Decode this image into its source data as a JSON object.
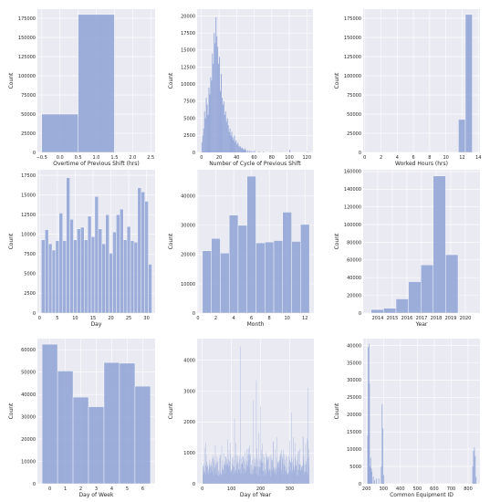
{
  "chart_data": [
    {
      "type": "bar",
      "xlabel": "Overtime of Previous Shift (hrs)",
      "ylabel": "Count",
      "xlim": [
        -0.62,
        2.62
      ],
      "ylim": [
        0,
        187000
      ],
      "xticks": [
        -0.5,
        0.0,
        0.5,
        1.0,
        1.5,
        2.0,
        2.5
      ],
      "xtick_labels": [
        "−0.5",
        "0.0",
        "0.5",
        "1.0",
        "1.5",
        "2.0",
        "2.5"
      ],
      "yticks": [
        0,
        25000,
        50000,
        75000,
        100000,
        125000,
        150000,
        175000
      ],
      "bins": [
        {
          "x0": -0.5,
          "x1": 0.5,
          "count": 50000
        },
        {
          "x0": 0.5,
          "x1": 1.5,
          "count": 180000
        }
      ]
    },
    {
      "type": "bar",
      "xlabel": "Number of Cycle of Previous Shift",
      "ylabel": "Count",
      "xlim": [
        -5,
        127
      ],
      "ylim": [
        0,
        21000
      ],
      "xticks": [
        0,
        20,
        40,
        60,
        80,
        100,
        120
      ],
      "yticks": [
        0,
        2500,
        5000,
        7500,
        10000,
        12500,
        15000,
        17500,
        20000
      ],
      "bin_width": 1,
      "x": [
        0,
        1,
        2,
        3,
        4,
        5,
        6,
        7,
        8,
        9,
        10,
        11,
        12,
        13,
        14,
        15,
        16,
        17,
        18,
        19,
        20,
        21,
        22,
        23,
        24,
        25,
        26,
        27,
        28,
        29,
        30,
        31,
        32,
        33,
        34,
        35,
        36,
        37,
        38,
        39,
        40,
        41,
        42,
        43,
        44,
        45,
        46,
        47,
        48,
        49,
        50,
        52,
        54,
        56,
        58,
        60,
        65,
        70,
        80,
        90,
        100,
        120
      ],
      "values": [
        1500,
        2500,
        3500,
        6000,
        5000,
        8000,
        7000,
        5500,
        9500,
        8500,
        11000,
        10500,
        14500,
        13000,
        17500,
        16000,
        19800,
        17000,
        15500,
        13000,
        14000,
        9000,
        11500,
        8000,
        7000,
        7500,
        5500,
        6000,
        4500,
        5000,
        4000,
        3000,
        3500,
        2500,
        3000,
        2200,
        1800,
        2500,
        1500,
        1800,
        1200,
        1400,
        1000,
        800,
        900,
        600,
        700,
        500,
        400,
        600,
        350,
        300,
        250,
        200,
        150,
        300,
        150,
        100,
        80,
        50,
        400,
        100
      ]
    },
    {
      "type": "bar",
      "xlabel": "Worked Hours (hrs)",
      "ylabel": "Count",
      "xlim": [
        -0.2,
        14.2
      ],
      "ylim": [
        0,
        187000
      ],
      "xticks": [
        0,
        2,
        4,
        6,
        8,
        10,
        12,
        14
      ],
      "yticks": [
        0,
        25000,
        50000,
        75000,
        100000,
        125000,
        150000,
        175000
      ],
      "bins": [
        {
          "x0": 11.55,
          "x1": 12.4,
          "count": 43000
        },
        {
          "x0": 12.4,
          "x1": 13.25,
          "count": 180000
        }
      ]
    },
    {
      "type": "bar",
      "xlabel": "Day",
      "ylabel": "Count",
      "xlim": [
        -0.6,
        32.4
      ],
      "ylim": [
        0,
        18200
      ],
      "xticks": [
        0,
        5,
        10,
        15,
        20,
        25,
        30
      ],
      "yticks": [
        0,
        2500,
        5000,
        7500,
        10000,
        12500,
        15000,
        17500
      ],
      "categories": [
        1,
        2,
        3,
        4,
        5,
        6,
        7,
        8,
        9,
        10,
        11,
        12,
        13,
        14,
        15,
        16,
        17,
        18,
        19,
        20,
        21,
        22,
        23,
        24,
        25,
        26,
        27,
        28,
        29,
        30,
        31
      ],
      "values": [
        9300,
        10600,
        8800,
        8000,
        9200,
        12700,
        9200,
        17200,
        11900,
        9300,
        10700,
        10900,
        9300,
        12300,
        9700,
        14800,
        10700,
        8800,
        12500,
        7600,
        10300,
        12500,
        13200,
        9300,
        11000,
        9200,
        9000,
        15900,
        15400,
        14200,
        6200
      ]
    },
    {
      "type": "bar",
      "xlabel": "Month",
      "ylabel": "Count",
      "xlim": [
        -0.1,
        13.0
      ],
      "ylim": [
        0,
        49000
      ],
      "xticks": [
        0,
        2,
        4,
        6,
        8,
        10,
        12
      ],
      "yticks": [
        0,
        10000,
        20000,
        30000,
        40000
      ],
      "categories": [
        1,
        2,
        3,
        4,
        5,
        6,
        7,
        8,
        9,
        10,
        11,
        12
      ],
      "values": [
        21300,
        25500,
        20500,
        33500,
        30000,
        46800,
        24000,
        24300,
        24800,
        34500,
        24500,
        30300
      ]
    },
    {
      "type": "bar",
      "xlabel": "Year",
      "ylabel": "Count",
      "xlim": [
        2013,
        2021
      ],
      "ylim": [
        0,
        162000
      ],
      "xticks": [
        2014,
        2015,
        2016,
        2017,
        2018,
        2019,
        2020
      ],
      "yticks": [
        0,
        20000,
        40000,
        60000,
        80000,
        100000,
        120000,
        140000,
        160000
      ],
      "bins": [
        {
          "x0": 2013.55,
          "x1": 2014.4,
          "count": 4000
        },
        {
          "x0": 2014.4,
          "x1": 2015.25,
          "count": 5500
        },
        {
          "x0": 2015.25,
          "x1": 2016.1,
          "count": 16000
        },
        {
          "x0": 2016.1,
          "x1": 2016.95,
          "count": 35500
        },
        {
          "x0": 2016.95,
          "x1": 2017.8,
          "count": 54500
        },
        {
          "x0": 2017.8,
          "x1": 2018.65,
          "count": 155000
        },
        {
          "x0": 2018.65,
          "x1": 2019.5,
          "count": 66000
        }
      ]
    },
    {
      "type": "bar",
      "xlabel": "Day of Week",
      "ylabel": "Count",
      "xlim": [
        -0.8,
        6.8
      ],
      "ylim": [
        0,
        65000
      ],
      "xticks": [
        0,
        1,
        2,
        3,
        4,
        5,
        6
      ],
      "yticks": [
        0,
        10000,
        20000,
        30000,
        40000,
        50000,
        60000
      ],
      "categories": [
        0,
        1,
        2,
        3,
        4,
        5,
        6
      ],
      "values": [
        62500,
        50500,
        38800,
        34500,
        54300,
        54000,
        43700
      ]
    },
    {
      "type": "bar",
      "xlabel": "Day of Year",
      "ylabel": "Count",
      "xlim": [
        -18,
        383
      ],
      "ylim": [
        0,
        4700
      ],
      "xticks": [
        0,
        100,
        200,
        300
      ],
      "yticks": [
        0,
        1000,
        2000,
        3000,
        4000
      ],
      "bin_width": 1,
      "series": [
        {
          "x_start": 1,
          "x_end": 366
        }
      ],
      "peaks": [
        [
          130,
          4450
        ],
        [
          185,
          3350
        ],
        [
          362,
          3100
        ],
        [
          175,
          2700
        ],
        [
          200,
          2500
        ],
        [
          305,
          2300
        ],
        [
          110,
          2100
        ]
      ]
    },
    {
      "type": "bar",
      "xlabel": "Common Equipment ID",
      "ylabel": "Count",
      "xlim": [
        180,
        870
      ],
      "ylim": [
        0,
        42000
      ],
      "xticks": [
        200,
        300,
        400,
        500,
        600,
        700,
        800
      ],
      "yticks": [
        0,
        5000,
        10000,
        15000,
        20000,
        25000,
        30000,
        35000,
        40000
      ],
      "x": [
        205,
        208,
        212,
        215,
        218,
        222,
        226,
        230,
        238,
        245,
        255,
        270,
        285,
        290,
        295,
        300,
        825,
        830,
        835,
        840,
        845
      ],
      "values": [
        14000,
        39500,
        40500,
        29000,
        5000,
        7500,
        4500,
        3500,
        2000,
        1000,
        1500,
        1500,
        5000,
        23000,
        16000,
        2500,
        5000,
        9500,
        10500,
        8000,
        2000
      ]
    }
  ]
}
